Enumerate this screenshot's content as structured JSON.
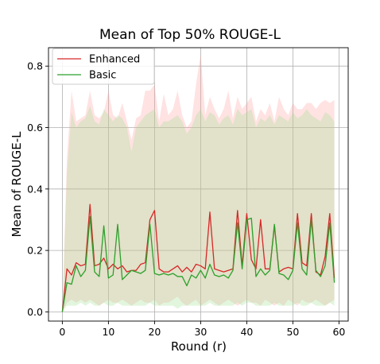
{
  "chart_data": {
    "type": "line",
    "title": "Mean of Top 50% ROUGE-L",
    "xlabel": "Round (r)",
    "ylabel": "Mean of ROUGE-L",
    "xlim": [
      -3,
      62
    ],
    "ylim": [
      -0.03,
      0.86
    ],
    "xticks": [
      0,
      10,
      20,
      30,
      40,
      50,
      60
    ],
    "yticks": [
      0.0,
      0.2,
      0.4,
      0.6,
      0.8
    ],
    "grid": true,
    "legend": "top-left",
    "x": [
      0,
      1,
      2,
      3,
      4,
      5,
      6,
      7,
      8,
      9,
      10,
      11,
      12,
      13,
      14,
      15,
      16,
      17,
      18,
      19,
      20,
      21,
      22,
      23,
      24,
      25,
      26,
      27,
      28,
      29,
      30,
      31,
      32,
      33,
      34,
      35,
      36,
      37,
      38,
      39,
      40,
      41,
      42,
      43,
      44,
      45,
      46,
      47,
      48,
      49,
      50,
      51,
      52,
      53,
      54,
      55,
      56,
      57,
      58,
      59
    ],
    "series": [
      {
        "name": "Enhanced",
        "color": "#d62728",
        "band_color": "#ff9896",
        "values": [
          0.0,
          0.14,
          0.12,
          0.16,
          0.15,
          0.155,
          0.35,
          0.15,
          0.155,
          0.175,
          0.14,
          0.155,
          0.14,
          0.15,
          0.13,
          0.135,
          0.135,
          0.155,
          0.16,
          0.3,
          0.33,
          0.14,
          0.13,
          0.13,
          0.14,
          0.15,
          0.13,
          0.145,
          0.13,
          0.155,
          0.15,
          0.14,
          0.325,
          0.14,
          0.135,
          0.13,
          0.135,
          0.14,
          0.33,
          0.15,
          0.32,
          0.17,
          0.14,
          0.3,
          0.14,
          0.14,
          0.28,
          0.13,
          0.14,
          0.145,
          0.14,
          0.32,
          0.16,
          0.15,
          0.32,
          0.13,
          0.12,
          0.18,
          0.32,
          0.11
        ],
        "band_low": [
          0.0,
          0.03,
          0.04,
          0.03,
          0.04,
          0.03,
          0.04,
          0.03,
          0.02,
          0.03,
          0.04,
          0.03,
          0.03,
          0.04,
          0.03,
          0.02,
          0.03,
          0.04,
          0.03,
          0.03,
          0.04,
          0.02,
          0.03,
          0.03,
          0.04,
          0.05,
          0.03,
          0.02,
          0.03,
          0.04,
          0.02,
          0.03,
          0.04,
          0.03,
          0.02,
          0.03,
          0.04,
          0.03,
          0.02,
          0.03,
          0.04,
          0.03,
          0.03,
          0.02,
          0.04,
          0.03,
          0.02,
          0.03,
          0.02,
          0.04,
          0.03,
          0.02,
          0.04,
          0.03,
          0.03,
          0.04,
          0.03,
          0.02,
          0.03,
          0.04
        ],
        "band_high": [
          0.0,
          0.5,
          0.72,
          0.62,
          0.63,
          0.64,
          0.72,
          0.64,
          0.63,
          0.65,
          0.72,
          0.64,
          0.63,
          0.68,
          0.62,
          0.56,
          0.63,
          0.64,
          0.72,
          0.72,
          0.74,
          0.62,
          0.71,
          0.64,
          0.66,
          0.72,
          0.64,
          0.6,
          0.62,
          0.74,
          0.84,
          0.64,
          0.7,
          0.66,
          0.63,
          0.66,
          0.72,
          0.63,
          0.7,
          0.66,
          0.68,
          0.7,
          0.62,
          0.66,
          0.64,
          0.68,
          0.62,
          0.7,
          0.66,
          0.64,
          0.68,
          0.66,
          0.66,
          0.68,
          0.68,
          0.66,
          0.68,
          0.69,
          0.68,
          0.69
        ]
      },
      {
        "name": "Basic",
        "color": "#2ca02c",
        "band_color": "#98df8a",
        "values": [
          0.0,
          0.095,
          0.09,
          0.15,
          0.115,
          0.135,
          0.31,
          0.13,
          0.115,
          0.28,
          0.11,
          0.12,
          0.285,
          0.105,
          0.12,
          0.135,
          0.13,
          0.125,
          0.135,
          0.285,
          0.125,
          0.12,
          0.125,
          0.12,
          0.125,
          0.115,
          0.115,
          0.085,
          0.12,
          0.11,
          0.135,
          0.11,
          0.155,
          0.12,
          0.115,
          0.12,
          0.11,
          0.135,
          0.29,
          0.14,
          0.3,
          0.305,
          0.115,
          0.14,
          0.12,
          0.135,
          0.285,
          0.125,
          0.12,
          0.105,
          0.135,
          0.29,
          0.14,
          0.12,
          0.3,
          0.135,
          0.115,
          0.15,
          0.29,
          0.095
        ],
        "band_low": [
          0.0,
          0.02,
          0.02,
          0.02,
          0.03,
          0.02,
          0.03,
          0.02,
          0.02,
          0.03,
          0.02,
          0.02,
          0.03,
          0.02,
          0.02,
          0.02,
          0.02,
          0.02,
          0.02,
          0.03,
          0.02,
          0.02,
          0.02,
          0.02,
          0.02,
          0.01,
          0.02,
          0.02,
          0.02,
          0.02,
          0.02,
          0.02,
          0.03,
          0.02,
          0.02,
          0.02,
          0.02,
          0.02,
          0.03,
          0.02,
          0.03,
          0.03,
          0.02,
          0.02,
          0.02,
          0.02,
          0.03,
          0.02,
          0.02,
          0.02,
          0.02,
          0.03,
          0.02,
          0.02,
          0.03,
          0.02,
          0.02,
          0.02,
          0.03,
          0.02
        ],
        "band_high": [
          0.0,
          0.45,
          0.65,
          0.6,
          0.62,
          0.63,
          0.67,
          0.62,
          0.61,
          0.66,
          0.64,
          0.62,
          0.64,
          0.63,
          0.6,
          0.52,
          0.6,
          0.62,
          0.64,
          0.65,
          0.66,
          0.6,
          0.62,
          0.62,
          0.63,
          0.64,
          0.62,
          0.58,
          0.6,
          0.64,
          0.66,
          0.62,
          0.65,
          0.64,
          0.61,
          0.63,
          0.64,
          0.61,
          0.66,
          0.64,
          0.65,
          0.66,
          0.6,
          0.63,
          0.62,
          0.64,
          0.61,
          0.64,
          0.63,
          0.62,
          0.65,
          0.63,
          0.64,
          0.66,
          0.64,
          0.63,
          0.62,
          0.65,
          0.64,
          0.62
        ]
      }
    ]
  }
}
